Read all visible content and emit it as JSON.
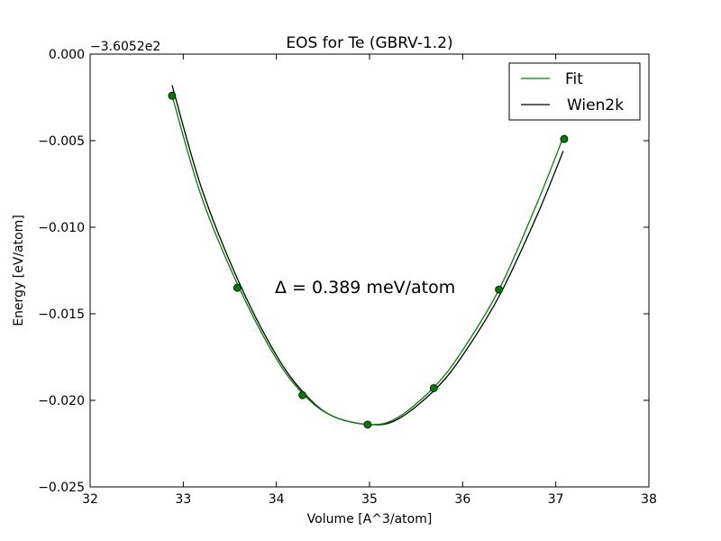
{
  "chart_data": {
    "type": "line",
    "title": "EOS for Te (GBRV-1.2)",
    "xlabel": "Volume [A^3/atom]",
    "ylabel": "Energy [eV/atom]",
    "offset_text": "−3.6052e2",
    "annotation": "Δ = 0.389 meV/atom",
    "xlim": [
      32,
      38
    ],
    "ylim": [
      -0.025,
      0.0
    ],
    "x_ticks": [
      32,
      33,
      34,
      35,
      36,
      37,
      38
    ],
    "y_ticks": [
      0.0,
      -0.005,
      -0.01,
      -0.015,
      -0.02,
      -0.025
    ],
    "x_tick_labels": [
      "32",
      "33",
      "34",
      "35",
      "36",
      "37",
      "38"
    ],
    "y_tick_labels": [
      "0.000",
      "−0.005",
      "−0.010",
      "−0.015",
      "−0.020",
      "−0.025"
    ],
    "legend_position": "top-right",
    "grid": false,
    "series": [
      {
        "name": "Fit",
        "color": "#008000",
        "kind": "curve",
        "x": [
          32.88,
          33.2,
          33.6,
          34.0,
          34.3,
          34.6,
          35.0,
          35.3,
          35.7,
          36.0,
          36.4,
          36.8,
          37.08
        ],
        "y": [
          -0.0024,
          -0.0083,
          -0.0135,
          -0.0176,
          -0.0197,
          -0.0209,
          -0.0214,
          -0.021,
          -0.0192,
          -0.0171,
          -0.0135,
          -0.0086,
          -0.0048
        ]
      },
      {
        "name": "Wien2k",
        "color": "#000000",
        "kind": "curve",
        "x": [
          32.88,
          33.2,
          33.6,
          34.0,
          34.3,
          34.6,
          35.0,
          35.3,
          35.7,
          36.0,
          36.4,
          36.8,
          37.08
        ],
        "y": [
          -0.0018,
          -0.0078,
          -0.0132,
          -0.0174,
          -0.0196,
          -0.0209,
          -0.0214,
          -0.0211,
          -0.0194,
          -0.0174,
          -0.0139,
          -0.0093,
          -0.0056
        ]
      },
      {
        "name": "",
        "color": "#008000",
        "kind": "points",
        "x": [
          32.88,
          33.58,
          34.28,
          34.98,
          35.69,
          36.39,
          37.09
        ],
        "y": [
          -0.0024,
          -0.0135,
          -0.0197,
          -0.0214,
          -0.0193,
          -0.0136,
          -0.0049
        ]
      }
    ]
  }
}
